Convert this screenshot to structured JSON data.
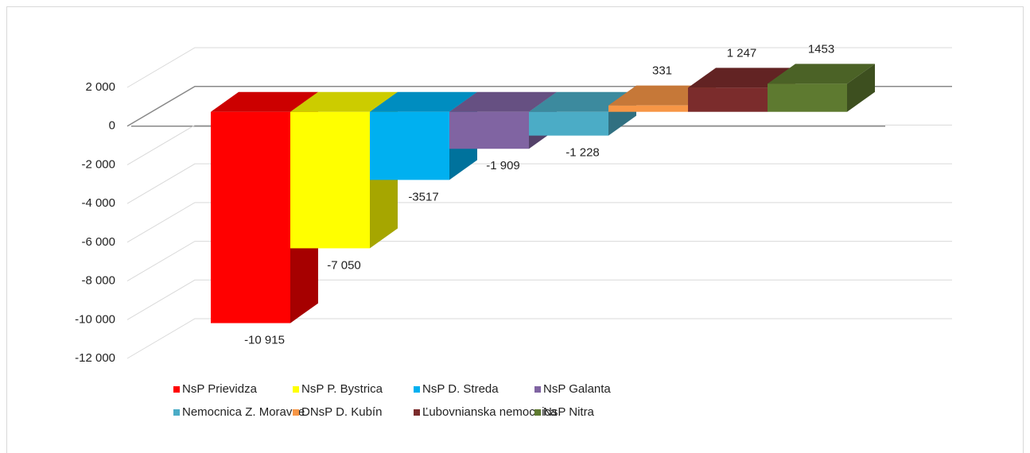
{
  "chart_data": {
    "type": "bar3d",
    "series": [
      {
        "name": "NsP Prievidza",
        "color": "#ff0000",
        "values": [
          -10915
        ],
        "value_labels": [
          "-10 915"
        ]
      },
      {
        "name": "NsP P. Bystrica",
        "color": "#ffff00",
        "values": [
          -7050
        ],
        "value_labels": [
          "-7 050"
        ]
      },
      {
        "name": "NsP D. Streda",
        "color": "#00b0f0",
        "values": [
          -3517
        ],
        "value_labels": [
          "-3517"
        ]
      },
      {
        "name": "NsP Galanta",
        "color": "#8064a2",
        "values": [
          -1909
        ],
        "value_labels": [
          "-1 909"
        ]
      },
      {
        "name": "Nemocnica Z. Moravce",
        "color": "#4bacc6",
        "values": [
          -1228
        ],
        "value_labels": [
          "-1 228"
        ]
      },
      {
        "name": "DNsP D. Kubín",
        "color": "#f79646",
        "values": [
          331
        ],
        "value_labels": [
          "331"
        ]
      },
      {
        "name": "Ľubovnianska nemocnica",
        "color": "#7b2c2c",
        "values": [
          1247
        ],
        "value_labels": [
          "1 247"
        ]
      },
      {
        "name": "NsP Nitra",
        "color": "#5e7a30",
        "values": [
          1453
        ],
        "value_labels": [
          "1453"
        ]
      }
    ],
    "ylim": [
      -12000,
      2000
    ],
    "yticks": [
      {
        "value": 2000,
        "label": "2 000"
      },
      0,
      {
        "value": -2000,
        "label": "-2 000"
      },
      {
        "value": -4000,
        "label": "-4 000"
      },
      {
        "value": -6000,
        "label": "-6 000"
      },
      {
        "value": -8000,
        "label": "-8 000"
      },
      {
        "value": -10000,
        "label": "-10 000"
      },
      {
        "value": -12000,
        "label": "-12 000"
      }
    ],
    "grid": true,
    "legend": "bottom"
  }
}
